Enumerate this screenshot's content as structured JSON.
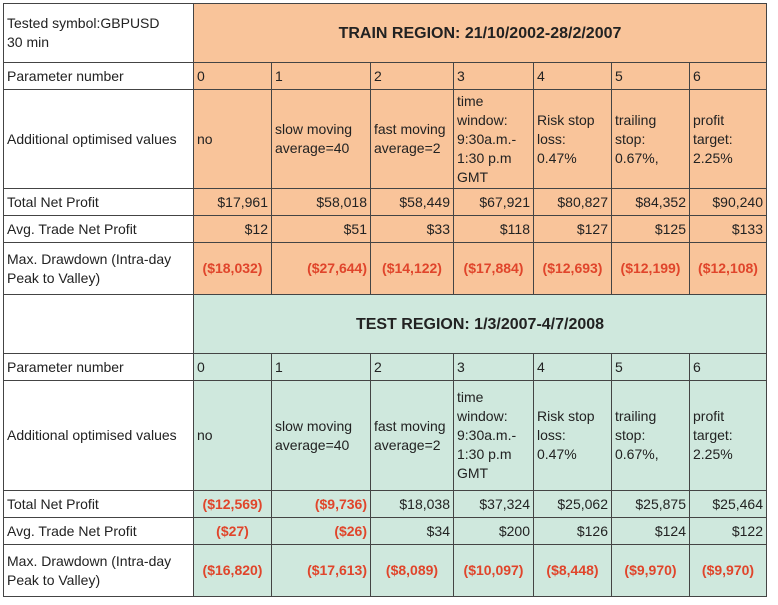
{
  "symbol_header": [
    "Tested symbol:GBPUSD",
    "30 min"
  ],
  "train": {
    "title": "TRAIN REGION: 21/10/2002-28/2/2007",
    "param_label": "Parameter number",
    "params": [
      "0",
      "1",
      "2",
      "3",
      "4",
      "5",
      "6"
    ],
    "opt_label": "Additional optimised values",
    "opt_values": [
      "no",
      "slow moving average=40",
      "fast moving average=2",
      "time window: 9:30a.m.- 1:30 p.m GMT",
      "Risk stop loss: 0.47%",
      "trailing stop: 0.67%,",
      "profit target: 2.25%"
    ],
    "tnp_label": "Total Net Profit",
    "tnp": [
      "$17,961",
      "$58,018",
      "$58,449",
      "$67,921",
      "$80,827",
      "$84,352",
      "$90,240"
    ],
    "atnp_label": "Avg. Trade Net Profit",
    "atnp": [
      "$12",
      "$51",
      "$33",
      "$118",
      "$127",
      "$125",
      "$133"
    ],
    "mdd_label": "Max. Drawdown (Intra-day Peak to Valley)",
    "mdd": [
      "($18,032)",
      "($27,644)",
      "($14,122)",
      "($17,884)",
      "($12,693)",
      "($12,199)",
      "($12,108)"
    ]
  },
  "test": {
    "title": "TEST REGION: 1/3/2007-4/7/2008",
    "param_label": "Parameter number",
    "params": [
      "0",
      "1",
      "2",
      "3",
      "4",
      "5",
      "6"
    ],
    "opt_label": "Additional optimised values",
    "opt_values": [
      "no",
      "slow moving average=40",
      "fast moving average=2",
      "time window: 9:30a.m.- 1:30 p.m GMT",
      "Risk stop loss: 0.47%",
      "trailing stop: 0.67%,",
      "profit target: 2.25%"
    ],
    "tnp_label": "Total Net Profit",
    "tnp": [
      "($12,569)",
      "($9,736)",
      "$18,038",
      "$37,324",
      "$25,062",
      "$25,875",
      "$25,464"
    ],
    "atnp_label": "Avg. Trade Net Profit",
    "atnp": [
      "($27)",
      "($26)",
      "$34",
      "$200",
      "$126",
      "$124",
      "$122"
    ],
    "mdd_label": "Max. Drawdown (Intra-day Peak to Valley)",
    "mdd": [
      "($16,820)",
      "($17,613)",
      "($8,089)",
      "($10,097)",
      "($8,448)",
      "($9,970)",
      "($9,970)"
    ]
  },
  "colors": {
    "train_bg": "#f9c49a",
    "test_bg": "#cfe8dd",
    "negative": "#e0452b"
  }
}
